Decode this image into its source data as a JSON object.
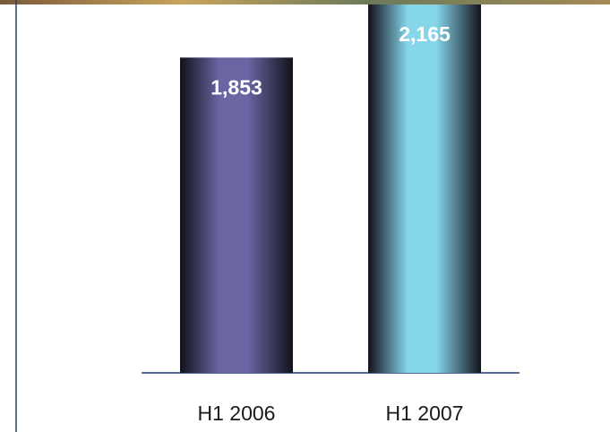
{
  "chart_data": {
    "type": "bar",
    "categories": [
      "H1 2006",
      "H1 2007"
    ],
    "values": [
      1853,
      2165
    ],
    "value_labels": [
      "1,853",
      "2,165"
    ],
    "colors": [
      "#6a65a3",
      "#86d6ea"
    ]
  }
}
